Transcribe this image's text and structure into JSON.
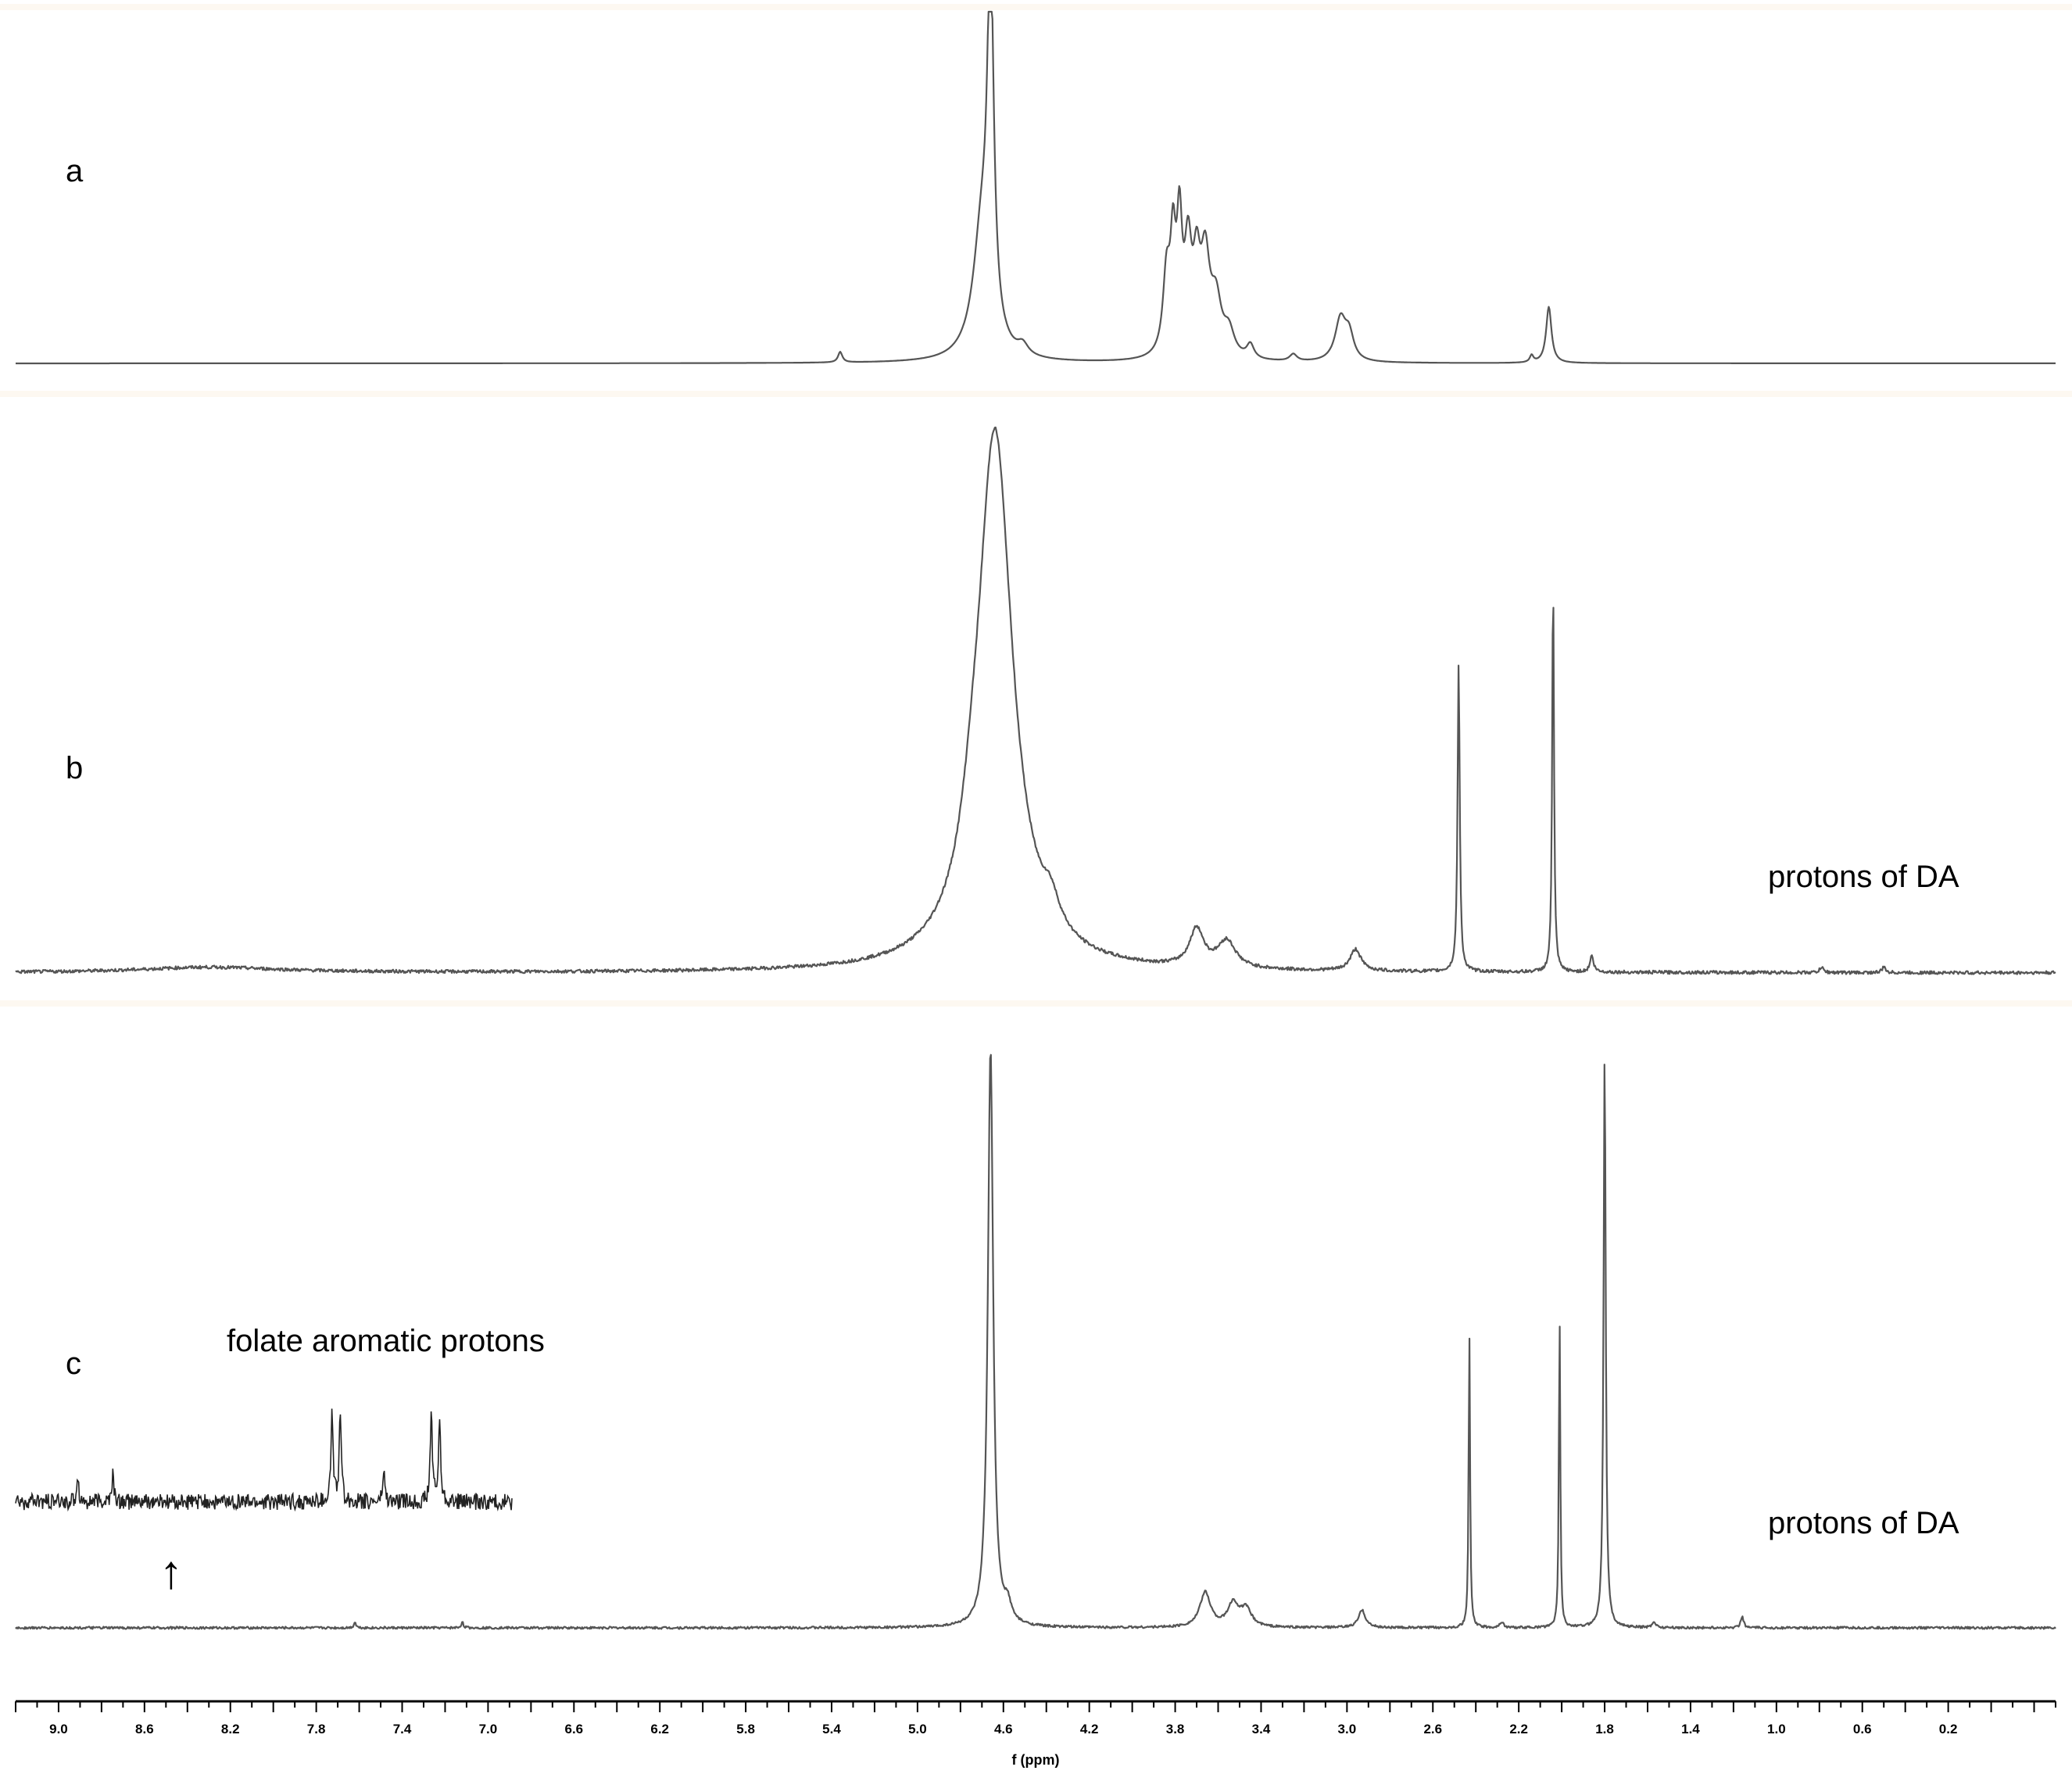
{
  "chart_data": {
    "type": "line",
    "xlabel": "f (ppm)",
    "xlim": [
      9.2,
      -0.3
    ],
    "x_reversed": true,
    "x_ticks": [
      "9.0",
      "8.6",
      "8.2",
      "7.8",
      "7.4",
      "7.0",
      "6.6",
      "6.2",
      "5.8",
      "5.4",
      "5.0",
      "4.6",
      "4.2",
      "3.8",
      "3.4",
      "3.0",
      "2.6",
      "2.2",
      "1.8",
      "1.4",
      "1.0",
      "0.6",
      "0.2"
    ],
    "grid": false,
    "panel_background": "#fdf8f1",
    "panels": [
      {
        "label": "a",
        "annotation": "",
        "baseline_noise": 0,
        "peaks": [
          {
            "ppm": 5.36,
            "height": 0.03,
            "width": 0.012
          },
          {
            "ppm": 4.66,
            "height": 1.0,
            "width": 0.018,
            "clipped": true
          },
          {
            "ppm": 4.7,
            "height": 0.35,
            "width": 0.05
          },
          {
            "ppm": 4.51,
            "height": 0.03,
            "width": 0.03
          },
          {
            "ppm": 3.84,
            "height": 0.22,
            "width": 0.02
          },
          {
            "ppm": 3.81,
            "height": 0.28,
            "width": 0.015
          },
          {
            "ppm": 3.78,
            "height": 0.34,
            "width": 0.015
          },
          {
            "ppm": 3.74,
            "height": 0.28,
            "width": 0.02
          },
          {
            "ppm": 3.7,
            "height": 0.22,
            "width": 0.02
          },
          {
            "ppm": 3.66,
            "height": 0.26,
            "width": 0.025
          },
          {
            "ppm": 3.61,
            "height": 0.15,
            "width": 0.03
          },
          {
            "ppm": 3.55,
            "height": 0.07,
            "width": 0.03
          },
          {
            "ppm": 3.45,
            "height": 0.04,
            "width": 0.02
          },
          {
            "ppm": 3.25,
            "height": 0.02,
            "width": 0.02
          },
          {
            "ppm": 3.03,
            "height": 0.12,
            "width": 0.03
          },
          {
            "ppm": 2.99,
            "height": 0.07,
            "width": 0.025
          },
          {
            "ppm": 2.14,
            "height": 0.02,
            "width": 0.01
          },
          {
            "ppm": 2.06,
            "height": 0.16,
            "width": 0.015
          }
        ]
      },
      {
        "label": "b",
        "annotation": "protons of DA",
        "baseline_noise": 0.003,
        "peaks": [
          {
            "ppm": 8.3,
            "height": 0.01,
            "width": 0.4
          },
          {
            "ppm": 4.64,
            "height": 1.0,
            "width": 0.1,
            "clipped": true
          },
          {
            "ppm": 4.75,
            "height": 0.05,
            "width": 0.05
          },
          {
            "ppm": 4.38,
            "height": 0.05,
            "width": 0.05
          },
          {
            "ppm": 3.7,
            "height": 0.07,
            "width": 0.04
          },
          {
            "ppm": 3.56,
            "height": 0.05,
            "width": 0.05
          },
          {
            "ppm": 2.96,
            "height": 0.04,
            "width": 0.03
          },
          {
            "ppm": 2.48,
            "height": 0.57,
            "width": 0.006
          },
          {
            "ppm": 2.04,
            "height": 0.74,
            "width": 0.005
          },
          {
            "ppm": 1.86,
            "height": 0.03,
            "width": 0.01
          },
          {
            "ppm": 0.79,
            "height": 0.01,
            "width": 0.01
          },
          {
            "ppm": 0.5,
            "height": 0.01,
            "width": 0.01
          }
        ]
      },
      {
        "label": "c",
        "annotation": "protons of DA",
        "baseline_noise": 0.002,
        "peaks": [
          {
            "ppm": 4.66,
            "height": 1.0,
            "width": 0.015,
            "clipped": true
          },
          {
            "ppm": 4.58,
            "height": 0.03,
            "width": 0.02
          },
          {
            "ppm": 3.66,
            "height": 0.06,
            "width": 0.03
          },
          {
            "ppm": 3.53,
            "height": 0.04,
            "width": 0.03
          },
          {
            "ppm": 3.47,
            "height": 0.03,
            "width": 0.03
          },
          {
            "ppm": 2.93,
            "height": 0.03,
            "width": 0.02
          },
          {
            "ppm": 2.43,
            "height": 0.51,
            "width": 0.004
          },
          {
            "ppm": 2.28,
            "height": 0.01,
            "width": 0.01
          },
          {
            "ppm": 2.01,
            "height": 0.54,
            "width": 0.004
          },
          {
            "ppm": 1.8,
            "height": 1.0,
            "width": 0.006,
            "clipped": true
          },
          {
            "ppm": 1.57,
            "height": 0.01,
            "width": 0.01
          },
          {
            "ppm": 1.16,
            "height": 0.02,
            "width": 0.008
          },
          {
            "ppm": 7.62,
            "height": 0.01,
            "width": 0.006
          },
          {
            "ppm": 7.12,
            "height": 0.01,
            "width": 0.006
          }
        ],
        "inset": {
          "label": "folate aromatic protons",
          "arrow": "↑",
          "peaks": [
            {
              "ppm": 8.9,
              "height": 0.3
            },
            {
              "ppm": 8.73,
              "height": 0.3
            },
            {
              "ppm": 7.67,
              "height": 1.0
            },
            {
              "ppm": 7.63,
              "height": 1.0
            },
            {
              "ppm": 7.42,
              "height": 0.35
            },
            {
              "ppm": 7.19,
              "height": 1.0
            },
            {
              "ppm": 7.15,
              "height": 0.9
            }
          ]
        }
      }
    ]
  }
}
